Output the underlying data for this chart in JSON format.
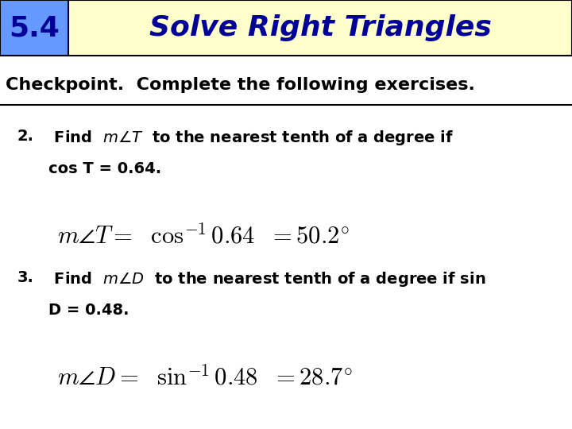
{
  "section_num": "5.4",
  "section_title": "Solve Right Triangles",
  "checkpoint_text": "Checkpoint.  Complete the following exercises.",
  "problem2_label": "2.",
  "problem2_text": " Find  $m\\angle T$  to the nearest tenth of a degree if",
  "problem2_text2": "cos T = 0.64.",
  "problem2_formula": "$m\\angle T = \\ \\ \\cos^{-1} 0.64 \\ \\ = 50.2^{\\circ}$",
  "problem3_label": "3.",
  "problem3_text": " Find  $m\\angle D$  to the nearest tenth of a degree if sin",
  "problem3_text2": "D = 0.48.",
  "problem3_formula": "$m\\angle D = \\ \\ \\sin^{-1} 0.48 \\ \\ = 28.7^{\\circ}$",
  "header_bg": "#ffffcc",
  "header_num_bg": "#6699ff",
  "header_title_color": "#000099",
  "header_num_color": "#000099",
  "checkpoint_color": "#000000",
  "body_bg": "#ffffff",
  "fig_width": 7.2,
  "fig_height": 5.4
}
